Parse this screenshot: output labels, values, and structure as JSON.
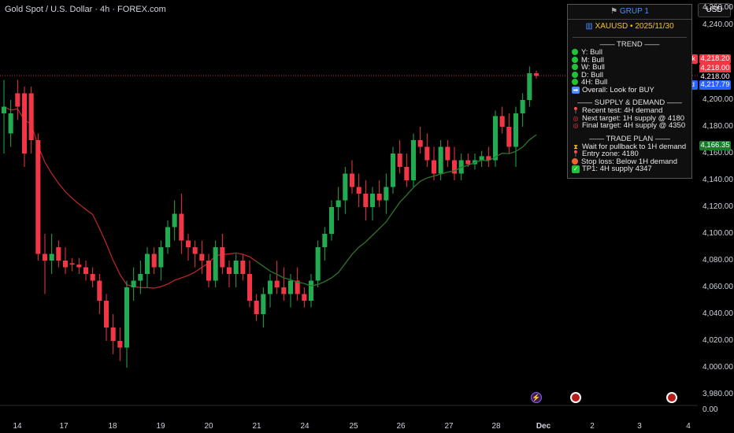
{
  "chart_title": "Gold Spot / U.S. Dollar · 4h · FOREX.com",
  "currency": "USD",
  "panel": {
    "header": "GRUP 1",
    "header_icon": "flag-icon",
    "subtitle": "XAUUSD • 2025/11/30",
    "subtitle_icon": "chart-icon",
    "trend_title": "TREND",
    "trend": [
      "Y: Bull",
      "M: Bull",
      "W: Bull",
      "D: Bull",
      "4H: Bull"
    ],
    "overall": "Overall: Look for BUY",
    "sd_title": "SUPPLY & DEMAND",
    "sd": [
      "Recent test: 4H demand",
      "Next target: 1H supply @ 4180",
      "Final target: 4H supply @ 4350"
    ],
    "plan_title": "TRADE PLAN",
    "plan": [
      "Wait for pullback to 1H demand",
      "Entry zone: 4180",
      "Stop loss: Below 1H demand",
      "TP1: 4H supply 4347"
    ]
  },
  "price_axis": [
    "4,260.00",
    "4,240.00",
    "4,200.00",
    "4,180.00",
    "4,160.00",
    "4,140.00",
    "4,120.00",
    "4,100.00",
    "4,080.00",
    "4,060.00",
    "4,040.00",
    "4,020.00",
    "4,000.00",
    "3,980.00",
    "0.00"
  ],
  "price_tags": {
    "ask_label": "Ask",
    "ask": "4,218.20",
    "last": "4,218.00",
    "mid": "4,218.00",
    "bid_label": "Bid",
    "bid": "4,217.79",
    "ma": "4,166.35"
  },
  "time_axis": [
    "14",
    "17",
    "18",
    "19",
    "20",
    "21",
    "24",
    "25",
    "26",
    "27",
    "28",
    "Dec",
    "2",
    "3",
    "4"
  ],
  "colors": {
    "up": "#22ab50",
    "down": "#f23645",
    "ma_red": "#c62828",
    "ma_green": "#1b7a2a",
    "panel_header": "#4a8eff",
    "subtitle": "#f5c518",
    "bid": "#2962ff"
  },
  "chart_data": {
    "type": "candlestick",
    "title": "Gold Spot / U.S. Dollar · 4h · FOREX.com",
    "y_unit": "USD",
    "ylim": [
      3975,
      4265
    ],
    "candles": [
      [
        4190,
        4215,
        4160,
        4195
      ],
      [
        4175,
        4200,
        4165,
        4190
      ],
      [
        4205,
        4215,
        4185,
        4195
      ],
      [
        4205,
        4210,
        4150,
        4160
      ],
      [
        4205,
        4210,
        4160,
        4170
      ],
      [
        4170,
        4175,
        4080,
        4085
      ],
      [
        4085,
        4100,
        4055,
        4080
      ],
      [
        4080,
        4100,
        4070,
        4085
      ],
      [
        4090,
        4095,
        4075,
        4080
      ],
      [
        4080,
        4090,
        4070,
        4075
      ],
      [
        4078,
        4082,
        4072,
        4077
      ],
      [
        4077,
        4082,
        4070,
        4075
      ],
      [
        4075,
        4080,
        4065,
        4070
      ],
      [
        4070,
        4075,
        4060,
        4065
      ],
      [
        4065,
        4070,
        4040,
        4050
      ],
      [
        4050,
        4055,
        4020,
        4030
      ],
      [
        4030,
        4040,
        4010,
        4020
      ],
      [
        4020,
        4030,
        4005,
        4015
      ],
      [
        4015,
        4065,
        4000,
        4060
      ],
      [
        4060,
        4075,
        4050,
        4065
      ],
      [
        4065,
        4080,
        4055,
        4070
      ],
      [
        4070,
        4090,
        4060,
        4085
      ],
      [
        4085,
        4090,
        4070,
        4075
      ],
      [
        4075,
        4095,
        4065,
        4090
      ],
      [
        4090,
        4110,
        4085,
        4105
      ],
      [
        4105,
        4125,
        4095,
        4115
      ],
      [
        4115,
        4130,
        4085,
        4095
      ],
      [
        4095,
        4100,
        4080,
        4090
      ],
      [
        4090,
        4095,
        4075,
        4085
      ],
      [
        4085,
        4095,
        4070,
        4080
      ],
      [
        4080,
        4085,
        4060,
        4065
      ],
      [
        4065,
        4095,
        4060,
        4090
      ],
      [
        4090,
        4100,
        4070,
        4075
      ],
      [
        4075,
        4080,
        4060,
        4070
      ],
      [
        4070,
        4085,
        4060,
        4080
      ],
      [
        4080,
        4085,
        4065,
        4070
      ],
      [
        4070,
        4080,
        4045,
        4050
      ],
      [
        4050,
        4055,
        4035,
        4040
      ],
      [
        4040,
        4060,
        4030,
        4055
      ],
      [
        4055,
        4070,
        4045,
        4065
      ],
      [
        4065,
        4080,
        4055,
        4060
      ],
      [
        4060,
        4075,
        4050,
        4055
      ],
      [
        4055,
        4070,
        4045,
        4065
      ],
      [
        4065,
        4075,
        4050,
        4055
      ],
      [
        4055,
        4060,
        4045,
        4050
      ],
      [
        4050,
        4070,
        4045,
        4065
      ],
      [
        4065,
        4095,
        4060,
        4090
      ],
      [
        4090,
        4105,
        4080,
        4100
      ],
      [
        4100,
        4125,
        4095,
        4120
      ],
      [
        4120,
        4135,
        4110,
        4125
      ],
      [
        4125,
        4150,
        4115,
        4145
      ],
      [
        4145,
        4155,
        4130,
        4135
      ],
      [
        4135,
        4145,
        4120,
        4130
      ],
      [
        4130,
        4140,
        4110,
        4120
      ],
      [
        4120,
        4135,
        4110,
        4130
      ],
      [
        4130,
        4140,
        4120,
        4125
      ],
      [
        4125,
        4145,
        4115,
        4135
      ],
      [
        4135,
        4165,
        4130,
        4160
      ],
      [
        4160,
        4170,
        4145,
        4150
      ],
      [
        4150,
        4160,
        4135,
        4140
      ],
      [
        4140,
        4175,
        4135,
        4170
      ],
      [
        4170,
        4180,
        4160,
        4165
      ],
      [
        4165,
        4175,
        4150,
        4155
      ],
      [
        4155,
        4165,
        4140,
        4145
      ],
      [
        4145,
        4170,
        4140,
        4165
      ],
      [
        4165,
        4170,
        4150,
        4155
      ],
      [
        4155,
        4165,
        4140,
        4145
      ],
      [
        4145,
        4160,
        4140,
        4155
      ],
      [
        4155,
        4160,
        4150,
        4152
      ],
      [
        4152,
        4160,
        4148,
        4155
      ],
      [
        4155,
        4162,
        4150,
        4158
      ],
      [
        4158,
        4165,
        4150,
        4155
      ],
      [
        4155,
        4192,
        4150,
        4188
      ],
      [
        4188,
        4195,
        4175,
        4180
      ],
      [
        4180,
        4190,
        4160,
        4165
      ],
      [
        4165,
        4195,
        4150,
        4190
      ],
      [
        4190,
        4205,
        4180,
        4200
      ],
      [
        4200,
        4225,
        4195,
        4220
      ],
      [
        4220,
        4222,
        4216,
        4218
      ]
    ],
    "moving_average": {
      "color_down": "#c62828",
      "color_up": "#1b7a2a"
    }
  }
}
